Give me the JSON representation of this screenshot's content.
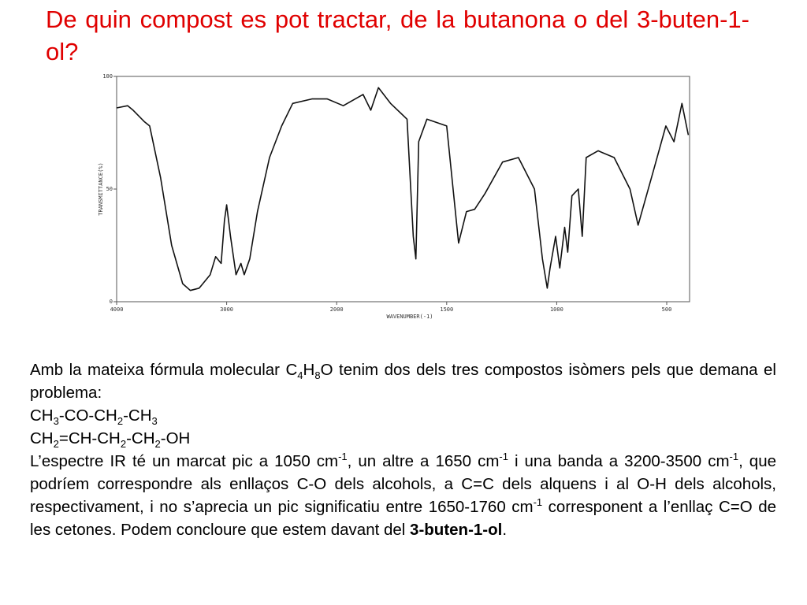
{
  "title": "De quin compost es pot tractar, de la butanona o del 3-buten-1-ol?",
  "chart_data": {
    "type": "line",
    "x_label": "WAVENUMBER(-1)",
    "y_label": "TRANSMITTANCE(%)",
    "x": [
      4000,
      3900,
      3850,
      3750,
      3700,
      3600,
      3500,
      3400,
      3330,
      3250,
      3150,
      3100,
      3050,
      3020,
      3000,
      2965,
      2915,
      2870,
      2840,
      2790,
      2720,
      2610,
      2500,
      2400,
      2225,
      2085,
      1970,
      1880,
      1845,
      1810,
      1755,
      1680,
      1652,
      1640,
      1627,
      1590,
      1500,
      1446,
      1410,
      1373,
      1326,
      1246,
      1174,
      1101,
      1065,
      1043,
      1030,
      1005,
      986,
      964,
      950,
      931,
      902,
      884,
      866,
      812,
      739,
      667,
      630,
      558,
      504,
      467,
      431,
      402
    ],
    "values": [
      86,
      87,
      85,
      80,
      78,
      55,
      25,
      8,
      5,
      6,
      12,
      20,
      17,
      36,
      43,
      29,
      12,
      17,
      12,
      19,
      40,
      64,
      78,
      88,
      90,
      90,
      87,
      92,
      85,
      95,
      88,
      81,
      29,
      19,
      71,
      81,
      78,
      26,
      40,
      41,
      48,
      62,
      64,
      50,
      19,
      6,
      15,
      29,
      15,
      33,
      22,
      47,
      50,
      29,
      64,
      67,
      64,
      50,
      34,
      59,
      78,
      71,
      88,
      74
    ],
    "color": "#111111",
    "xlim": [
      4000,
      400
    ],
    "xticks": [
      4000,
      3000,
      2000,
      1500,
      1000,
      500
    ],
    "ylim": [
      0,
      100
    ],
    "yticks": [
      0,
      50,
      100
    ]
  },
  "body": [
    [
      "Amb la mateixa fórmula molecular C",
      {
        "sub": "4"
      },
      "H",
      {
        "sub": "8"
      },
      "O tenim dos dels tres compostos isòmers pels que demana el problema:"
    ],
    [
      "CH",
      {
        "sub": "3"
      },
      "-CO-CH",
      {
        "sub": "2"
      },
      "-CH",
      {
        "sub": "3"
      }
    ],
    [
      "CH",
      {
        "sub": "2"
      },
      "=CH-CH",
      {
        "sub": "2"
      },
      "-CH",
      {
        "sub": "2"
      },
      "-OH"
    ],
    [
      "L’espectre IR té un marcat pic a 1050 cm",
      {
        "sup": "-1"
      },
      ", un altre a 1650 cm",
      {
        "sup": "-1"
      },
      " i una banda a 3200-3500 cm",
      {
        "sup": "-1"
      },
      ", que podríem correspondre als enllaços C-O dels alcohols, a C=C dels alquens i al O-H dels alcohols, respectivament, i no s’aprecia un pic significatiu entre 1650-1760 cm",
      {
        "sup": "-1"
      },
      " corresponent a l’enllaç C=O de les cetones. Podem concloure que estem davant  del ",
      {
        "b": "3-buten-1-ol"
      },
      "."
    ]
  ]
}
